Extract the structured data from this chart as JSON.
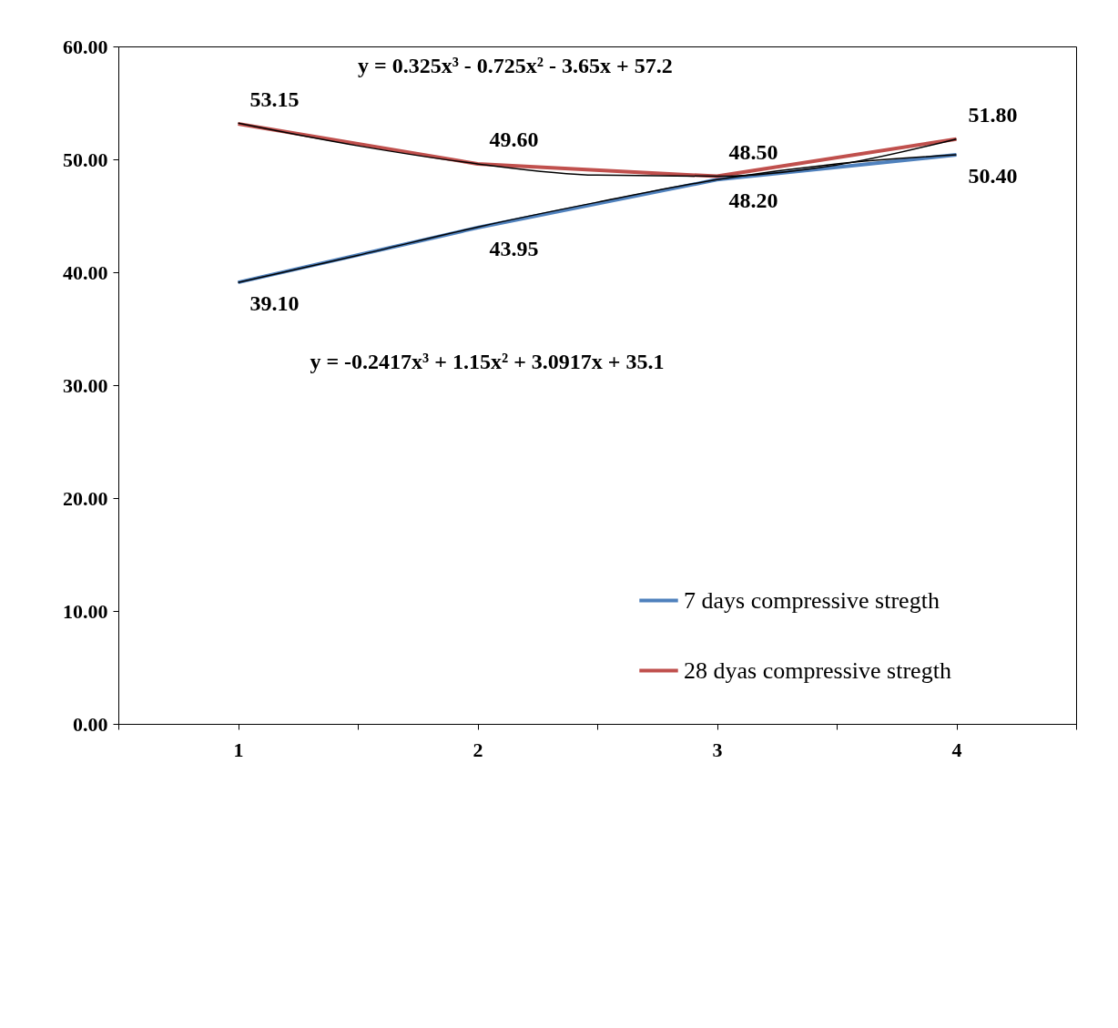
{
  "chart_data": {
    "type": "line",
    "x": [
      1,
      2,
      3,
      4
    ],
    "xlim": [
      0.5,
      4.5
    ],
    "xticks": [
      {
        "value": 0.5,
        "label": null
      },
      1,
      {
        "value": 1.5,
        "label": null
      },
      2,
      {
        "value": 2.5,
        "label": null
      },
      3,
      {
        "value": 3.5,
        "label": null
      },
      4,
      {
        "value": 4.5,
        "label": null
      }
    ],
    "ylim": [
      0,
      60
    ],
    "yticks": [
      {
        "value": 0,
        "label": "0.00"
      },
      {
        "value": 10,
        "label": "10.00"
      },
      {
        "value": 20,
        "label": "20.00"
      },
      {
        "value": 30,
        "label": "30.00"
      },
      {
        "value": 40,
        "label": "40.00"
      },
      {
        "value": 50,
        "label": "50.00"
      },
      {
        "value": 60,
        "label": "60.00"
      }
    ],
    "grid": false,
    "legend": "bottom right",
    "series": [
      {
        "name": "7 days compressive stregth",
        "color": "#4f81bd",
        "values": [
          39.1,
          43.95,
          48.2,
          50.4
        ],
        "value_labels": [
          "39.10",
          "43.95",
          "48.20",
          "50.40"
        ]
      },
      {
        "name": "28 dyas compressive stregth",
        "color": "#c0504d",
        "values": [
          53.15,
          49.6,
          48.5,
          51.8
        ],
        "value_labels": [
          "53.15",
          "49.60",
          "48.50",
          "51.80"
        ]
      },
      {
        "type": "line",
        "color": "#000000",
        "x": [
          1,
          1.5,
          2,
          2.5,
          3,
          3.5,
          4
        ],
        "values": [
          39.1,
          41.5,
          44.0,
          46.2,
          48.2,
          49.6,
          50.4
        ]
      },
      {
        "type": "line",
        "color": "#000000",
        "x": [
          1,
          1.5,
          2,
          2.5,
          3,
          3.5,
          4
        ],
        "values": [
          53.2,
          51.2,
          49.6,
          48.6,
          48.5,
          49.5,
          51.8
        ]
      }
    ],
    "annotations": [
      "y = 0.325x³ - 0.725x² - 3.65x + 57.2",
      "y = -0.2417x³ + 1.15x² + 3.0917x + 35.1"
    ]
  }
}
